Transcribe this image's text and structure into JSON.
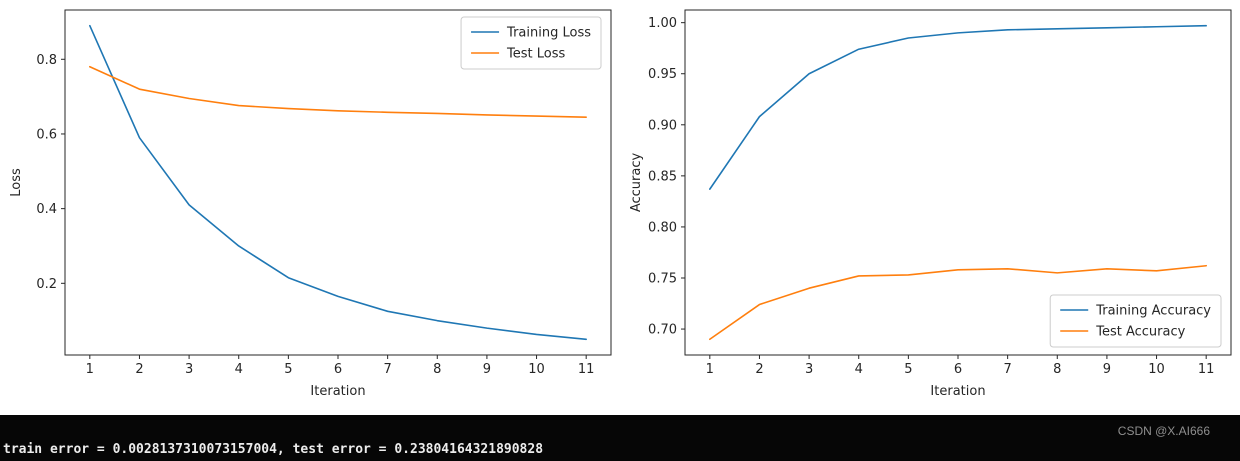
{
  "terminal": {
    "text": "train error = 0.0028137310073157004, test error = 0.23804164321890828"
  },
  "watermark": {
    "text": "CSDN @X.AI666"
  },
  "colors": {
    "training_series": "#1f77b4",
    "test_series": "#ff7f0e",
    "axis": "#262626",
    "legend_border": "#cccccc",
    "terminal_bg": "#060606",
    "terminal_fg": "#ececec",
    "watermark_fg": "#8f8f8f"
  },
  "chart_data": [
    {
      "name": "loss",
      "type": "line",
      "title": "",
      "xlabel": "Iteration",
      "ylabel": "Loss",
      "x": [
        1,
        2,
        3,
        4,
        5,
        6,
        7,
        8,
        9,
        10,
        11
      ],
      "series": [
        {
          "name": "Training Loss",
          "color": "#1f77b4",
          "values": [
            0.89,
            0.59,
            0.41,
            0.3,
            0.215,
            0.165,
            0.125,
            0.1,
            0.08,
            0.063,
            0.05
          ]
        },
        {
          "name": "Test Loss",
          "color": "#ff7f0e",
          "values": [
            0.78,
            0.72,
            0.695,
            0.676,
            0.668,
            0.662,
            0.658,
            0.655,
            0.651,
            0.648,
            0.645
          ]
        }
      ],
      "xticks": [
        1,
        2,
        3,
        4,
        5,
        6,
        7,
        8,
        9,
        10,
        11
      ],
      "xtick_labels": [
        "1",
        "2",
        "3",
        "4",
        "5",
        "6",
        "7",
        "8",
        "9",
        "10",
        "11"
      ],
      "yticks": [
        0.2,
        0.4,
        0.6,
        0.8
      ],
      "ytick_labels": [
        "0.2",
        "0.4",
        "0.6",
        "0.8"
      ],
      "xlim": [
        0.5,
        11.5
      ],
      "ylim": [
        0.008,
        0.932
      ],
      "grid": false,
      "legend_position": "top-right"
    },
    {
      "name": "accuracy",
      "type": "line",
      "title": "",
      "xlabel": "Iteration",
      "ylabel": "Accuracy",
      "x": [
        1,
        2,
        3,
        4,
        5,
        6,
        7,
        8,
        9,
        10,
        11
      ],
      "series": [
        {
          "name": "Training Accuracy",
          "color": "#1f77b4",
          "values": [
            0.837,
            0.908,
            0.95,
            0.974,
            0.985,
            0.99,
            0.993,
            0.994,
            0.995,
            0.996,
            0.997
          ]
        },
        {
          "name": "Test Accuracy",
          "color": "#ff7f0e",
          "values": [
            0.69,
            0.724,
            0.74,
            0.752,
            0.753,
            0.758,
            0.759,
            0.755,
            0.759,
            0.757,
            0.762
          ]
        }
      ],
      "xticks": [
        1,
        2,
        3,
        4,
        5,
        6,
        7,
        8,
        9,
        10,
        11
      ],
      "xtick_labels": [
        "1",
        "2",
        "3",
        "4",
        "5",
        "6",
        "7",
        "8",
        "9",
        "10",
        "11"
      ],
      "yticks": [
        0.7,
        0.75,
        0.8,
        0.85,
        0.9,
        0.95,
        1.0
      ],
      "ytick_labels": [
        "0.70",
        "0.75",
        "0.80",
        "0.85",
        "0.90",
        "0.95",
        "1.00"
      ],
      "xlim": [
        0.5,
        11.5
      ],
      "ylim": [
        0.6746,
        1.0124
      ],
      "grid": false,
      "legend_position": "bottom-right"
    }
  ]
}
